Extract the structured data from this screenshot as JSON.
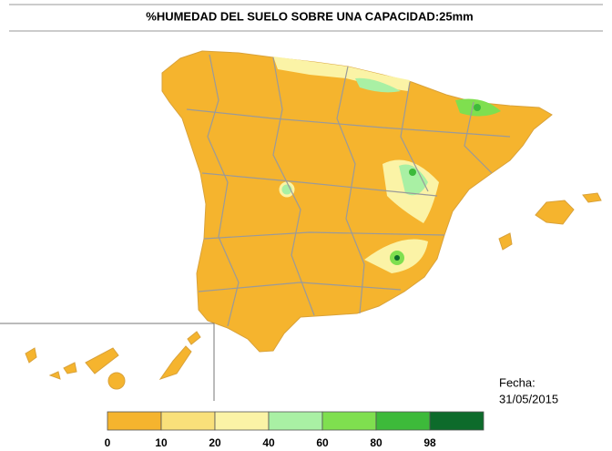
{
  "title": "%HUMEDAD DEL SUELO SOBRE UNA CAPACIDAD:25mm",
  "legend": {
    "labels": [
      0,
      10,
      20,
      40,
      60,
      80,
      98
    ],
    "colors": [
      "#f5b42e",
      "#f9e07a",
      "#fbf3a6",
      "#a9f0a4",
      "#7fdf4f",
      "#3dba3a",
      "#0d6b2b"
    ]
  },
  "fecha_label": "Fecha:",
  "fecha": "31/05/2015"
}
